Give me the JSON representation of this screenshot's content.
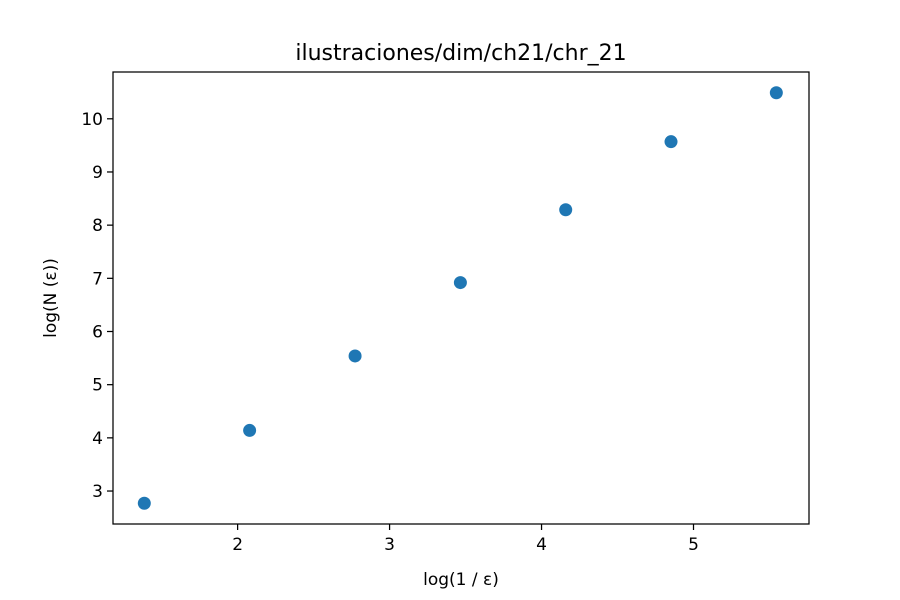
{
  "chart_data": {
    "type": "scatter",
    "title": "ilustraciones/dim/ch21/chr_21",
    "xlabel": "log(1 / ε)",
    "ylabel": "log(N (ε))",
    "xlim": [
      1.18,
      5.76
    ],
    "ylim": [
      2.38,
      10.88
    ],
    "xticks": [
      2,
      3,
      4,
      5
    ],
    "yticks": [
      3,
      4,
      5,
      6,
      7,
      8,
      9,
      10
    ],
    "grid": false,
    "marker_color": "#1f77b4",
    "series": [
      {
        "x": [
          1.386,
          2.079,
          2.773,
          3.466,
          4.159,
          4.852,
          5.545
        ],
        "y": [
          2.77,
          4.14,
          5.54,
          6.92,
          8.29,
          9.57,
          10.49
        ]
      }
    ]
  }
}
